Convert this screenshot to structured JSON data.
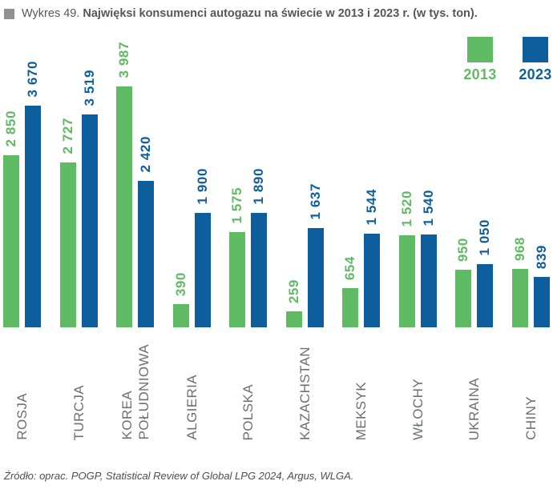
{
  "title": {
    "prefix": "Wykres 49.",
    "text": "Najwięksi konsumenci autogazu na świecie w 2013 i 2023 r. (w tys. ton)."
  },
  "legend": [
    {
      "label": "2013",
      "color": "#5fba64"
    },
    {
      "label": "2023",
      "color": "#0e5e9d"
    }
  ],
  "source": "Źródło: oprac. POGP, Statistical Review of Global LPG 2024, Argus, WLGA.",
  "colors": {
    "series_2013": "#5fba64",
    "series_2023": "#0e5e9d",
    "category_text": "#6e6f72",
    "title_text": "#55565a",
    "bullet": "#8f9194"
  },
  "chart_data": {
    "type": "bar",
    "title": "Najwięksi konsumenci autogazu na świecie w 2013 i 2023 r. (w tys. ton)",
    "xlabel": "",
    "ylabel": "",
    "ylim": [
      0,
      4000
    ],
    "grid": false,
    "legend_position": "top-right",
    "value_label_style": "rotated-90-above-bar",
    "category_label_style": "rotated-90-below-axis",
    "categories": [
      "ROSJA",
      "TURCJA",
      "KOREA\nPOŁUDNIOWA",
      "ALGIERIA",
      "POLSKA",
      "KAZACHSTAN",
      "MEKSYK",
      "WŁOCHY",
      "UKRAINA",
      "CHINY"
    ],
    "series": [
      {
        "name": "2013",
        "color": "#5fba64",
        "values": [
          2850,
          2727,
          3987,
          390,
          1575,
          259,
          654,
          1520,
          950,
          968
        ],
        "labels": [
          "2 850",
          "2 727",
          "3 987",
          "390",
          "1 575",
          "259",
          "654",
          "1 520",
          "950",
          "968"
        ]
      },
      {
        "name": "2023",
        "color": "#0e5e9d",
        "values": [
          3670,
          3519,
          2420,
          1900,
          1890,
          1637,
          1544,
          1540,
          1050,
          839
        ],
        "labels": [
          "3 670",
          "3 519",
          "2 420",
          "1 900",
          "1 890",
          "1 637",
          "1 544",
          "1 540",
          "1 050",
          "839"
        ]
      }
    ]
  }
}
